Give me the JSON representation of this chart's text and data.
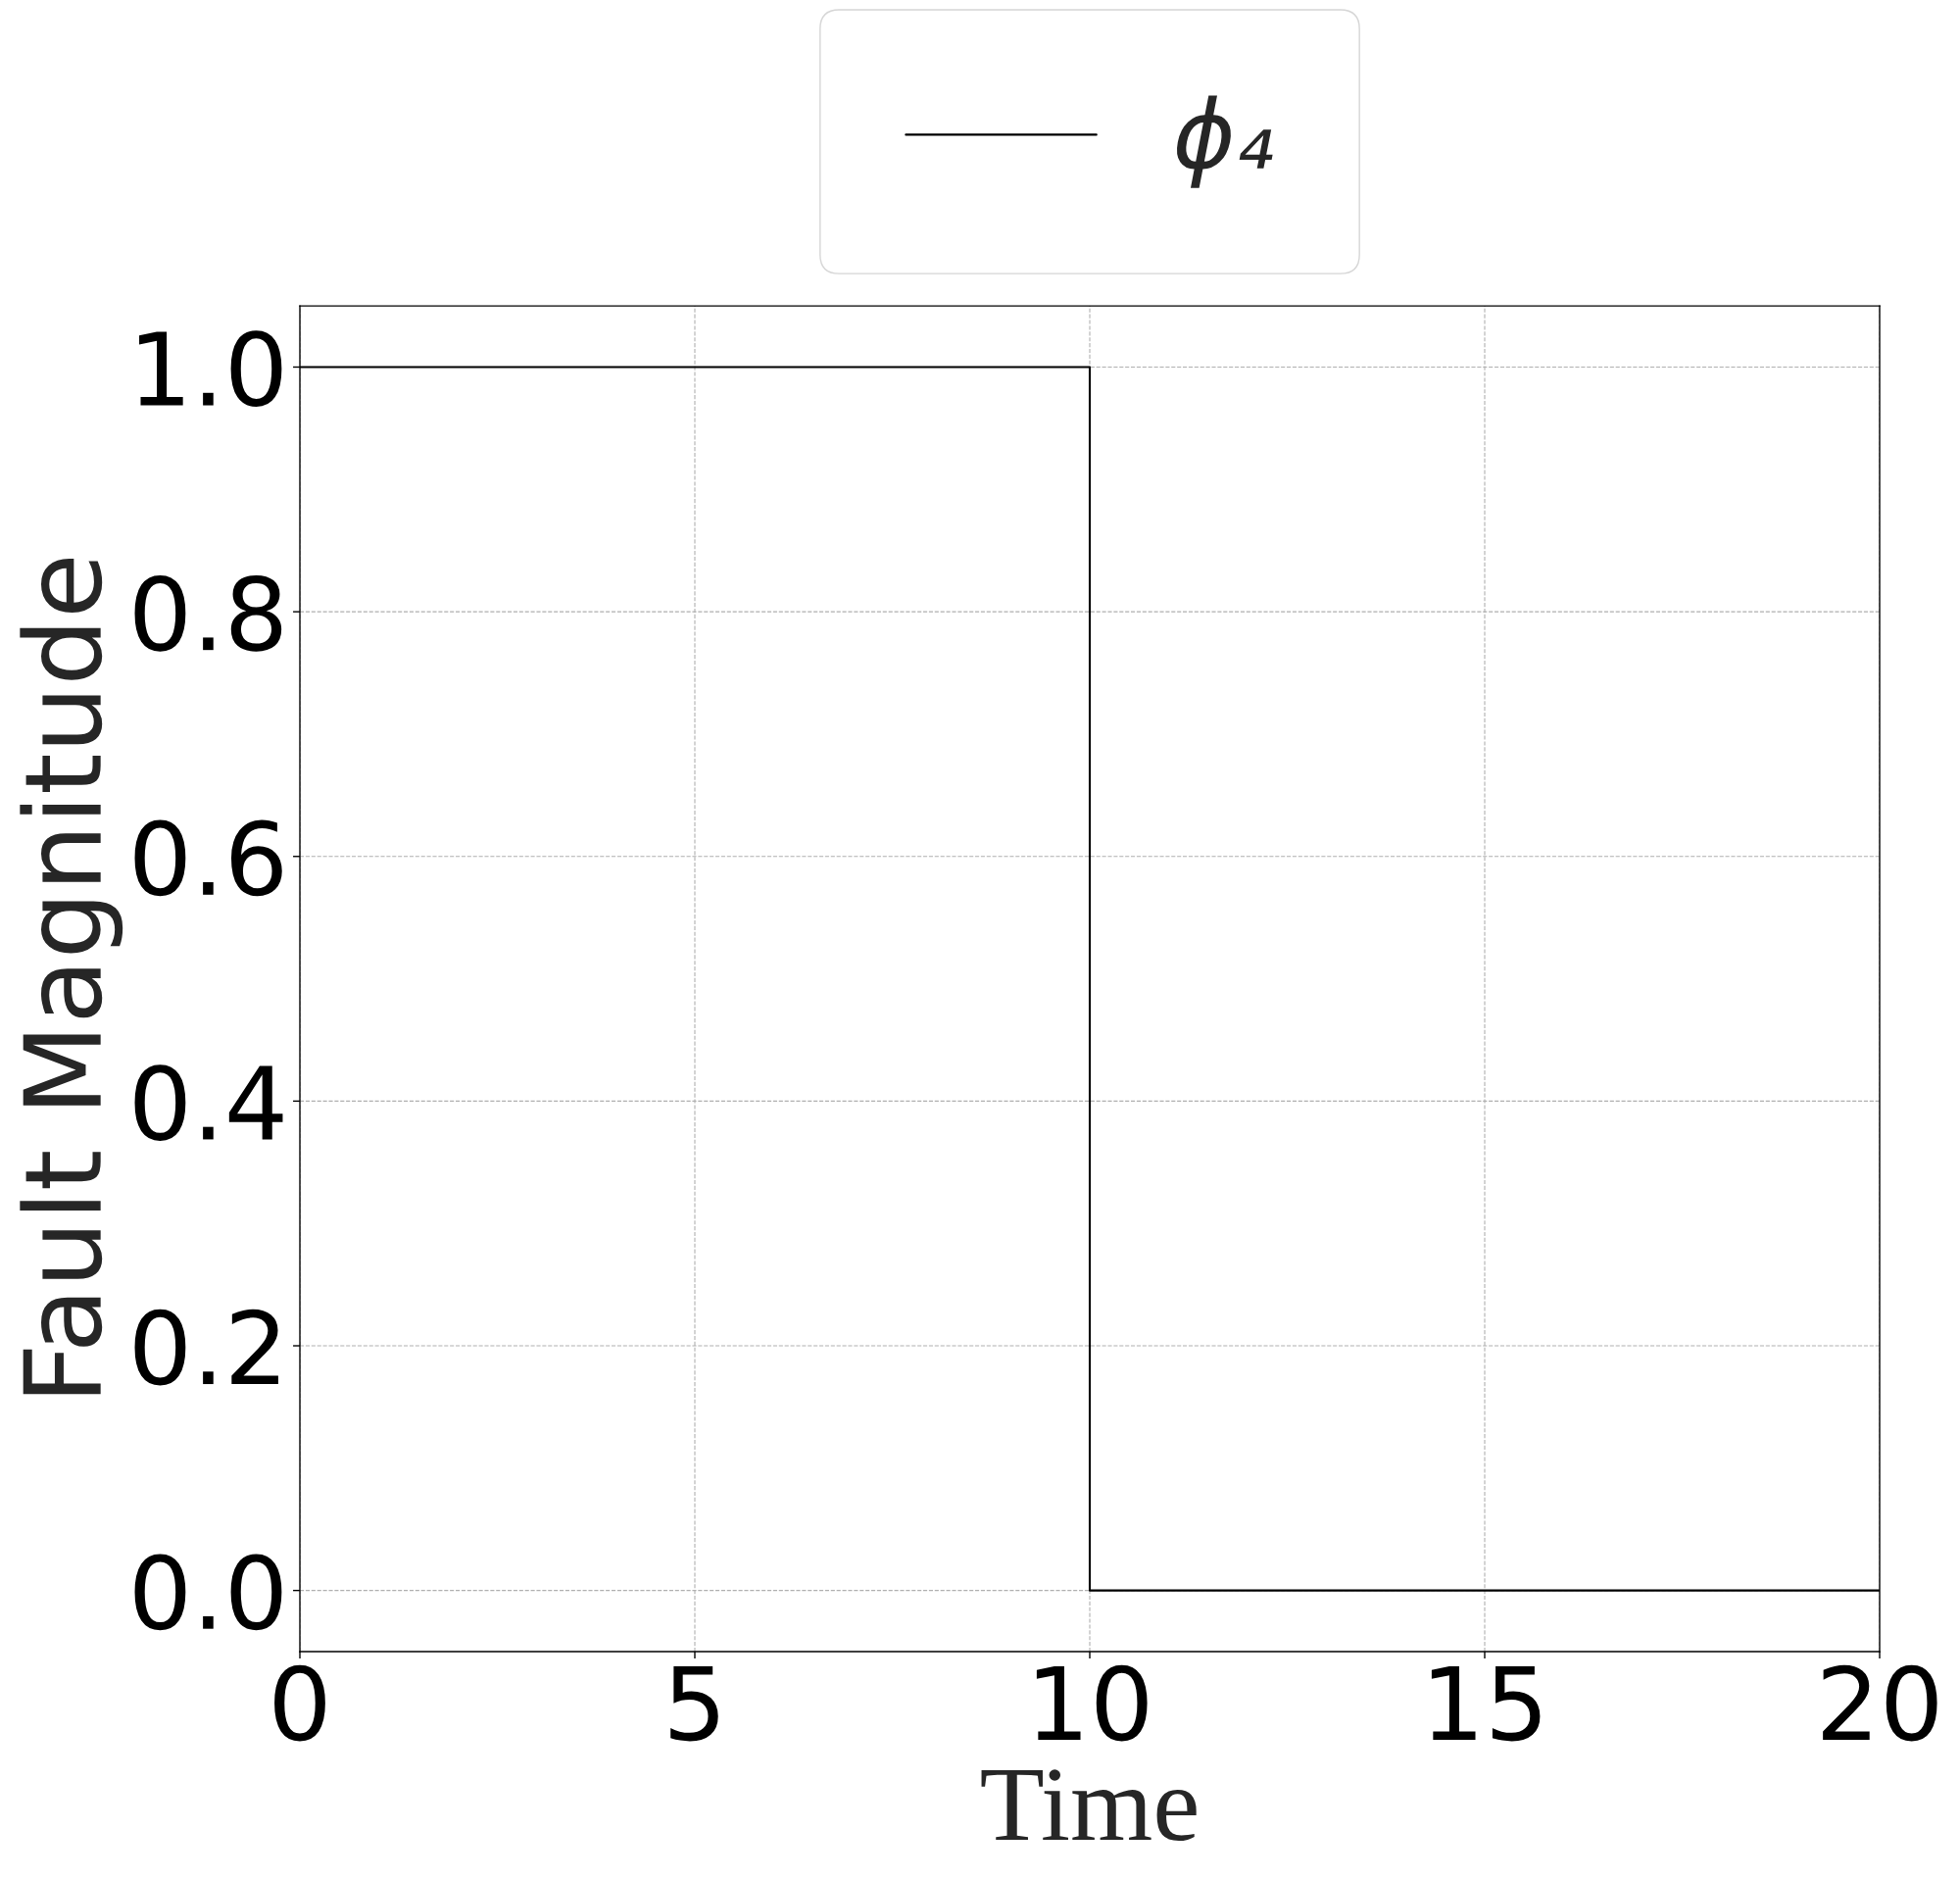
{
  "chart_data": {
    "type": "step",
    "xlabel": "Time",
    "ylabel": "Fault Magnitude",
    "x": [
      0,
      10,
      20
    ],
    "series": [
      {
        "name": "ϕ₄",
        "color": "#000000",
        "values": [
          1,
          0,
          0
        ]
      }
    ],
    "xlim": [
      0,
      20
    ],
    "ylim": [
      -0.05,
      1.05
    ],
    "xticks": [
      0,
      5,
      10,
      15,
      20
    ],
    "yticks": [
      {
        "value": 0,
        "label": "0.0"
      },
      0.2,
      0.4,
      0.6,
      0.8,
      {
        "value": 1,
        "label": "1.0"
      }
    ],
    "grid": true,
    "legend": "top"
  }
}
